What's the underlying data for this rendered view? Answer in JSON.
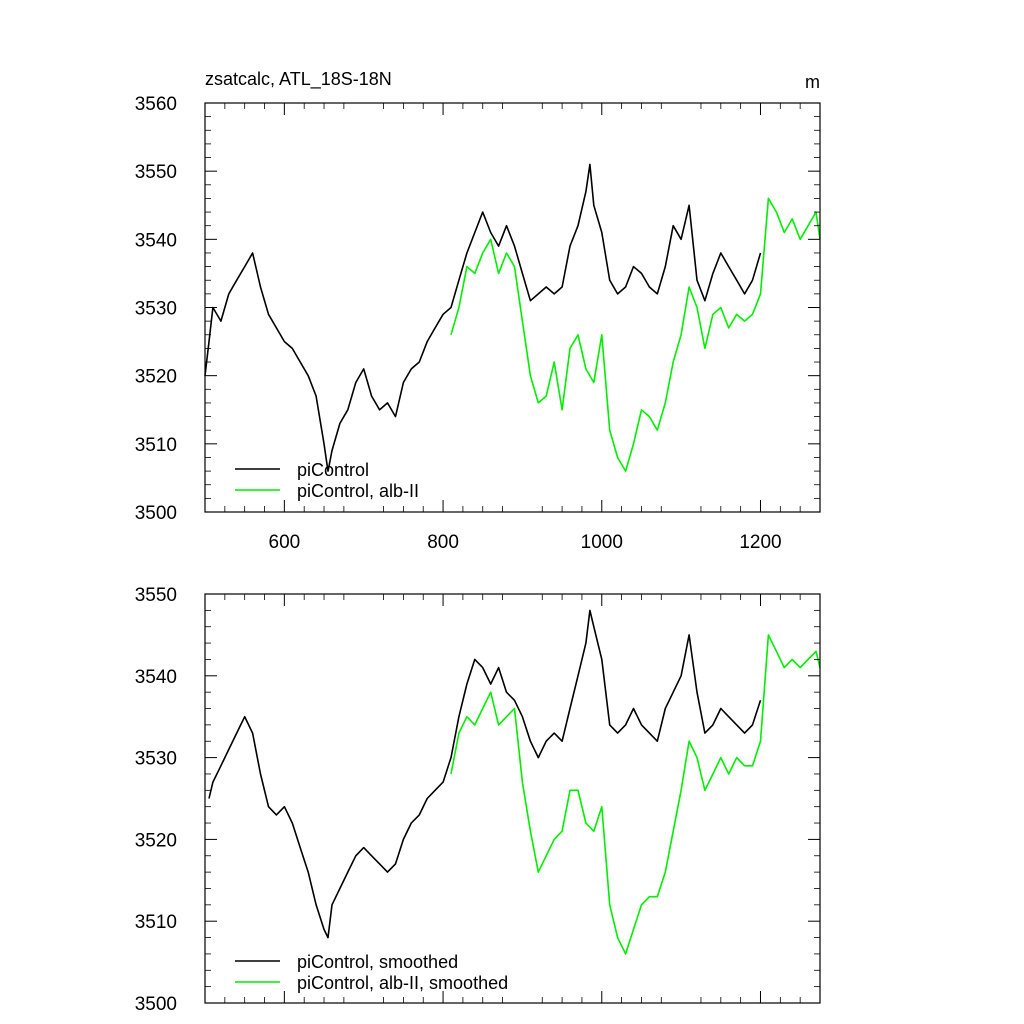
{
  "chart_data": [
    {
      "type": "line",
      "title": "zsatcalc, ATL_18S-18N",
      "units": "m",
      "xlim": [
        500,
        1275
      ],
      "ylim": [
        3500,
        3560
      ],
      "x_ticks": [
        600,
        800,
        1000,
        1200
      ],
      "x_tick_labels": [
        "600",
        "800",
        "1000",
        "1200"
      ],
      "y_ticks": [
        3500,
        3510,
        3520,
        3530,
        3540,
        3550,
        3560
      ],
      "y_tick_labels": [
        "3500",
        "3510",
        "3520",
        "3530",
        "3540",
        "3550",
        "3560"
      ],
      "grid": false,
      "legend": "bottom-left",
      "series": [
        {
          "name": "piControl",
          "color": "#000000",
          "x": [
            500,
            505,
            510,
            520,
            530,
            540,
            550,
            560,
            570,
            580,
            590,
            600,
            610,
            620,
            630,
            640,
            650,
            655,
            660,
            670,
            680,
            690,
            700,
            710,
            720,
            730,
            740,
            750,
            760,
            770,
            780,
            790,
            800,
            810,
            820,
            830,
            840,
            850,
            860,
            870,
            880,
            890,
            900,
            910,
            920,
            930,
            940,
            950,
            960,
            970,
            980,
            985,
            990,
            1000,
            1010,
            1020,
            1030,
            1040,
            1050,
            1060,
            1070,
            1080,
            1090,
            1100,
            1110,
            1120,
            1130,
            1140,
            1150,
            1160,
            1170,
            1180,
            1190,
            1200
          ],
          "y": [
            3520,
            3525,
            3530,
            3528,
            3532,
            3534,
            3536,
            3538,
            3533,
            3529,
            3527,
            3525,
            3524,
            3522,
            3520,
            3517,
            3510,
            3506,
            3509,
            3513,
            3515,
            3519,
            3521,
            3517,
            3515,
            3516,
            3514,
            3519,
            3521,
            3522,
            3525,
            3527,
            3529,
            3530,
            3534,
            3538,
            3541,
            3544,
            3541,
            3539,
            3542,
            3539,
            3535,
            3531,
            3532,
            3533,
            3532,
            3533,
            3539,
            3542,
            3547,
            3551,
            3545,
            3541,
            3534,
            3532,
            3533,
            3536,
            3535,
            3533,
            3532,
            3536,
            3542,
            3540,
            3545,
            3534,
            3531,
            3535,
            3538,
            3536,
            3534,
            3532,
            3534,
            3538
          ]
        },
        {
          "name": "piControl, alb-II",
          "color": "#00ee00",
          "x": [
            810,
            820,
            830,
            840,
            850,
            860,
            870,
            880,
            890,
            900,
            910,
            920,
            930,
            940,
            950,
            960,
            970,
            980,
            990,
            1000,
            1010,
            1020,
            1030,
            1040,
            1050,
            1060,
            1070,
            1080,
            1090,
            1100,
            1110,
            1120,
            1130,
            1140,
            1150,
            1160,
            1170,
            1180,
            1190,
            1200,
            1210,
            1220,
            1230,
            1240,
            1250,
            1260,
            1270,
            1275
          ],
          "y": [
            3526,
            3530,
            3536,
            3535,
            3538,
            3540,
            3535,
            3538,
            3536,
            3528,
            3520,
            3516,
            3517,
            3522,
            3515,
            3524,
            3526,
            3521,
            3519,
            3526,
            3512,
            3508,
            3506,
            3510,
            3515,
            3514,
            3512,
            3516,
            3522,
            3526,
            3533,
            3530,
            3524,
            3529,
            3530,
            3527,
            3529,
            3528,
            3529,
            3532,
            3546,
            3544,
            3541,
            3543,
            3540,
            3542,
            3544,
            3540
          ]
        }
      ]
    },
    {
      "type": "line",
      "title": "",
      "units": "",
      "xlim": [
        500,
        1275
      ],
      "ylim": [
        3500,
        3550
      ],
      "x_ticks": [
        600,
        800,
        1000,
        1200
      ],
      "y_ticks": [
        3500,
        3510,
        3520,
        3530,
        3540,
        3550
      ],
      "y_tick_labels": [
        "3500",
        "3510",
        "3520",
        "3530",
        "3540",
        "3550"
      ],
      "grid": false,
      "legend": "bottom-left",
      "series": [
        {
          "name": "piControl, smoothed",
          "color": "#000000",
          "x": [
            505,
            510,
            520,
            530,
            540,
            550,
            560,
            570,
            580,
            590,
            600,
            610,
            620,
            630,
            640,
            650,
            655,
            660,
            670,
            680,
            690,
            700,
            710,
            720,
            730,
            740,
            750,
            760,
            770,
            780,
            790,
            800,
            810,
            820,
            830,
            840,
            850,
            860,
            870,
            880,
            890,
            900,
            910,
            920,
            930,
            940,
            950,
            960,
            970,
            980,
            985,
            990,
            1000,
            1010,
            1020,
            1030,
            1040,
            1050,
            1060,
            1070,
            1080,
            1090,
            1100,
            1110,
            1120,
            1130,
            1140,
            1150,
            1160,
            1170,
            1180,
            1190,
            1200
          ],
          "y": [
            3525,
            3527,
            3529,
            3531,
            3533,
            3535,
            3533,
            3528,
            3524,
            3523,
            3524,
            3522,
            3519,
            3516,
            3512,
            3509,
            3508,
            3512,
            3514,
            3516,
            3518,
            3519,
            3518,
            3517,
            3516,
            3517,
            3520,
            3522,
            3523,
            3525,
            3526,
            3527,
            3530,
            3535,
            3539,
            3542,
            3541,
            3539,
            3541,
            3538,
            3537,
            3535,
            3532,
            3530,
            3532,
            3533,
            3532,
            3536,
            3540,
            3544,
            3548,
            3546,
            3542,
            3534,
            3533,
            3534,
            3536,
            3534,
            3533,
            3532,
            3536,
            3538,
            3540,
            3545,
            3538,
            3533,
            3534,
            3536,
            3535,
            3534,
            3533,
            3534,
            3537
          ]
        },
        {
          "name": "piControl, alb-II, smoothed",
          "color": "#00ee00",
          "x": [
            810,
            820,
            830,
            840,
            850,
            860,
            870,
            880,
            890,
            900,
            910,
            920,
            930,
            940,
            950,
            960,
            970,
            980,
            990,
            1000,
            1010,
            1020,
            1030,
            1040,
            1050,
            1060,
            1070,
            1080,
            1090,
            1100,
            1110,
            1120,
            1130,
            1140,
            1150,
            1160,
            1170,
            1180,
            1190,
            1200,
            1210,
            1220,
            1230,
            1240,
            1250,
            1260,
            1270,
            1275
          ],
          "y": [
            3528,
            3533,
            3535,
            3534,
            3536,
            3538,
            3534,
            3535,
            3536,
            3527,
            3521,
            3516,
            3518,
            3520,
            3521,
            3526,
            3526,
            3522,
            3521,
            3524,
            3512,
            3508,
            3506,
            3509,
            3512,
            3513,
            3513,
            3516,
            3521,
            3526,
            3532,
            3530,
            3526,
            3528,
            3530,
            3528,
            3530,
            3529,
            3529,
            3532,
            3545,
            3543,
            3541,
            3542,
            3541,
            3542,
            3543,
            3541
          ]
        }
      ]
    }
  ]
}
